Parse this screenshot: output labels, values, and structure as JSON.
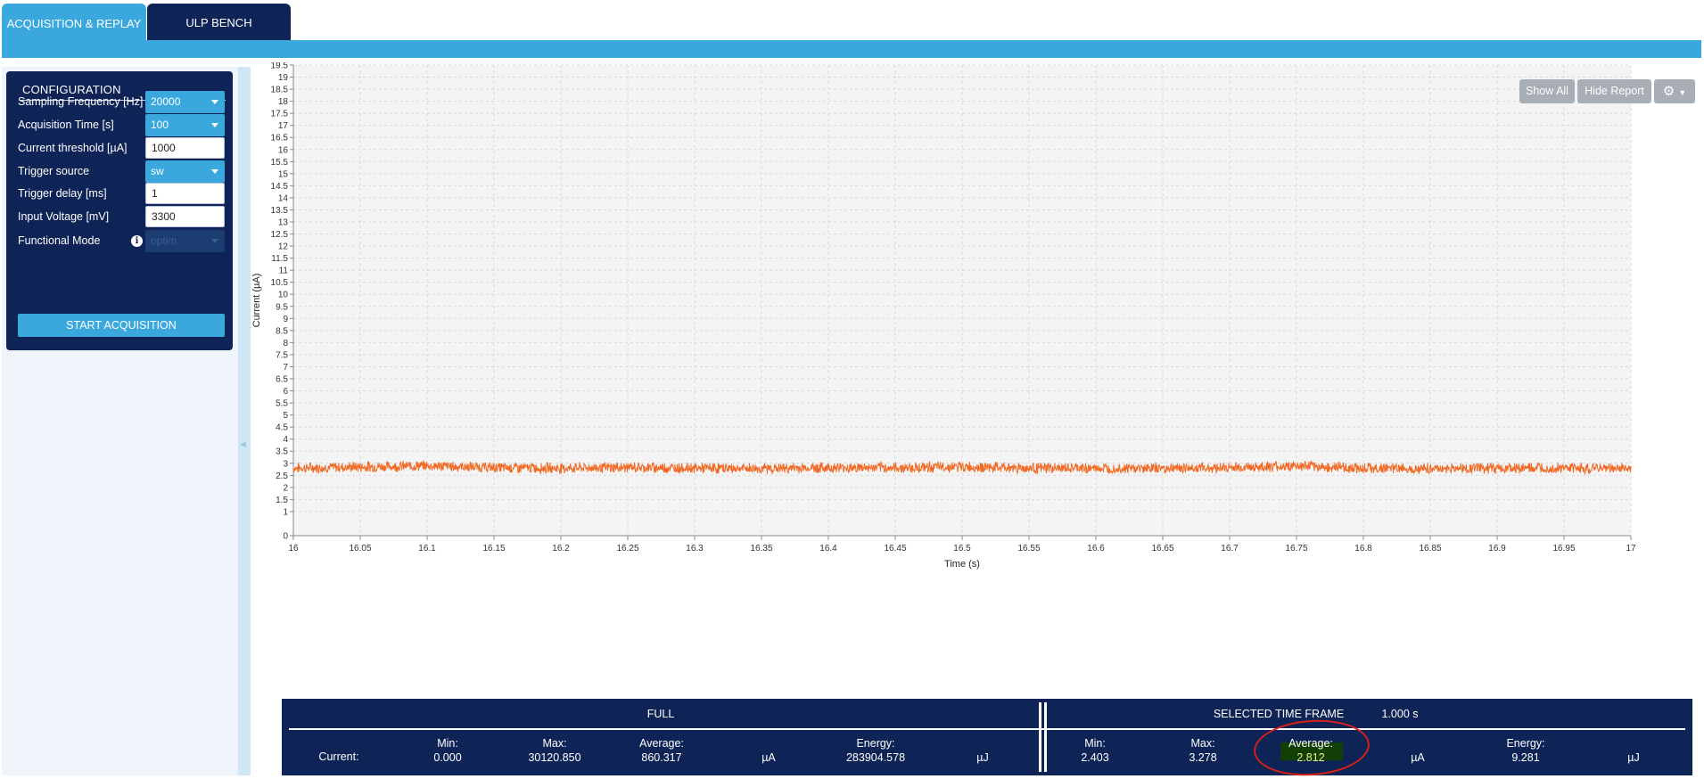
{
  "tabs": [
    {
      "label": "ACQUISITION & REPLAY",
      "active": true
    },
    {
      "label": "ULP BENCH",
      "active": false
    }
  ],
  "config": {
    "title": "CONFIGURATION",
    "fields": [
      {
        "label": "Sampling Frequency [Hz]",
        "type": "select",
        "value": "20000"
      },
      {
        "label": "Acquisition Time [s]",
        "type": "select",
        "value": "100"
      },
      {
        "label": "Current threshold [µA]",
        "type": "input",
        "value": "1000"
      },
      {
        "label": "Trigger source",
        "type": "select",
        "value": "sw"
      },
      {
        "label": "Trigger delay [ms]",
        "type": "input",
        "value": "1"
      },
      {
        "label": "Input Voltage [mV]",
        "type": "input",
        "value": "3300"
      },
      {
        "label": "Functional Mode",
        "type": "select",
        "value": "optim",
        "disabled": true
      }
    ],
    "start_label": "START ACQUISITION"
  },
  "toolbar": {
    "show_all": "Show All",
    "hide_report": "Hide Report",
    "gear_icon": "gear-icon"
  },
  "chart_data": {
    "type": "line",
    "xlabel": "Time (s)",
    "ylabel": "Current (µA)",
    "xlim": [
      16,
      17
    ],
    "ylim": [
      0,
      19.5
    ],
    "x_ticks": [
      "16",
      "16.05",
      "16.1",
      "16.15",
      "16.2",
      "16.25",
      "16.3",
      "16.35",
      "16.4",
      "16.45",
      "16.5",
      "16.55",
      "16.6",
      "16.65",
      "16.7",
      "16.75",
      "16.8",
      "16.85",
      "16.9",
      "16.95",
      "17"
    ],
    "y_ticks": [
      "0",
      "1",
      "1.5",
      "2",
      "2.5",
      "3",
      "3.5",
      "4",
      "4.5",
      "5",
      "5.5",
      "6",
      "6.5",
      "7",
      "7.5",
      "8",
      "8.5",
      "9",
      "9.5",
      "10",
      "10.5",
      "11",
      "11.5",
      "12",
      "12.5",
      "13",
      "13.5",
      "14",
      "14.5",
      "15",
      "15.5",
      "16",
      "16.5",
      "17",
      "17.5",
      "18",
      "18.5",
      "19",
      "19.5"
    ],
    "grid": true,
    "series": [
      {
        "color": "#f06a25",
        "x": [
          16.0,
          16.05,
          16.1,
          16.15,
          16.2,
          16.25,
          16.3,
          16.35,
          16.4,
          16.45,
          16.5,
          16.55,
          16.6,
          16.65,
          16.7,
          16.75,
          16.8,
          16.85,
          16.9,
          16.95,
          17.0
        ],
        "y": [
          2.8,
          2.85,
          2.9,
          2.82,
          2.8,
          2.83,
          2.8,
          2.78,
          2.82,
          2.81,
          2.85,
          2.8,
          2.79,
          2.8,
          2.82,
          2.88,
          2.8,
          2.78,
          2.8,
          2.79,
          2.8
        ],
        "noise_band": [
          2.55,
          3.15
        ]
      }
    ]
  },
  "stats": {
    "full_title": "FULL",
    "current_label": "Current:",
    "full": {
      "min_label": "Min:",
      "min": "0.000",
      "max_label": "Max:",
      "max": "30120.850",
      "avg_label": "Average:",
      "avg": "860.317",
      "unit_current": "µA",
      "energy_label": "Energy:",
      "energy": "283904.578",
      "unit_energy": "µJ"
    },
    "selected_title": "SELECTED TIME FRAME",
    "selected_duration": "1.000 s",
    "selected": {
      "min_label": "Min:",
      "min": "2.403",
      "max_label": "Max:",
      "max": "3.278",
      "avg_label": "Average:",
      "avg": "2.812",
      "unit_current": "µA",
      "energy_label": "Energy:",
      "energy": "9.281",
      "unit_energy": "µJ"
    },
    "highlight_color": "#d8201a"
  }
}
